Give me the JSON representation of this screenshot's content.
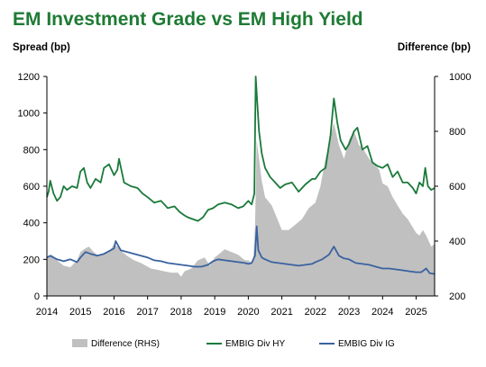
{
  "chart_data": {
    "type": "line",
    "title": "EM Investment Grade vs EM High Yield",
    "ylabel_left": "Spread (bp)",
    "ylabel_right": "Difference (bp)",
    "x_ticks": [
      "2014",
      "2015",
      "2016",
      "2017",
      "2018",
      "2019",
      "2020",
      "2021",
      "2022",
      "2023",
      "2024",
      "2025"
    ],
    "y_left_ticks": [
      "0",
      "200",
      "400",
      "600",
      "800",
      "1000",
      "1200"
    ],
    "y_right_ticks": [
      "200",
      "400",
      "600",
      "800",
      "1000"
    ],
    "xlim": [
      2014.0,
      2025.55
    ],
    "ylim_left": [
      0,
      1200
    ],
    "ylim_right": [
      200,
      1000
    ],
    "legend_position": "bottom",
    "colors": {
      "difference": "#c0c0c0",
      "hy": "#1a7a3a",
      "ig": "#3a62a0"
    },
    "series": [
      {
        "name": "Difference (RHS)",
        "axis": "right",
        "x": [
          2014.0,
          2014.15,
          2014.3,
          2014.5,
          2014.7,
          2014.9,
          2015.0,
          2015.1,
          2015.25,
          2015.4,
          2015.55,
          2015.7,
          2015.85,
          2016.0,
          2016.1,
          2016.25,
          2016.4,
          2016.6,
          2016.8,
          2016.95,
          2017.1,
          2017.3,
          2017.5,
          2017.7,
          2017.9,
          2018.0,
          2018.1,
          2018.3,
          2018.5,
          2018.7,
          2018.85,
          2019.0,
          2019.1,
          2019.3,
          2019.5,
          2019.7,
          2019.9,
          2020.0,
          2020.1,
          2020.15,
          2020.2,
          2020.25,
          2020.3,
          2020.4,
          2020.5,
          2020.7,
          2020.9,
          2021.0,
          2021.2,
          2021.4,
          2021.6,
          2021.8,
          2022.0,
          2022.15,
          2022.3,
          2022.45,
          2022.55,
          2022.7,
          2022.85,
          2023.0,
          2023.15,
          2023.3,
          2023.45,
          2023.6,
          2023.75,
          2023.9,
          2024.0,
          2024.15,
          2024.3,
          2024.45,
          2024.6,
          2024.75,
          2024.9,
          2025.0,
          2025.1,
          2025.2,
          2025.3,
          2025.45,
          2025.55
        ],
        "values": [
          340,
          350,
          330,
          310,
          305,
          330,
          360,
          370,
          380,
          360,
          345,
          355,
          360,
          390,
          380,
          360,
          345,
          330,
          320,
          310,
          300,
          295,
          290,
          285,
          285,
          270,
          290,
          300,
          330,
          340,
          310,
          340,
          350,
          370,
          360,
          350,
          330,
          330,
          320,
          340,
          450,
          770,
          720,
          620,
          560,
          530,
          470,
          440,
          440,
          460,
          480,
          520,
          540,
          600,
          700,
          780,
          830,
          750,
          700,
          770,
          800,
          750,
          730,
          700,
          680,
          660,
          610,
          600,
          560,
          530,
          500,
          480,
          450,
          430,
          420,
          440,
          420,
          380,
          390
        ]
      },
      {
        "name": "EMBIG Div HY",
        "axis": "left",
        "x": [
          2014.0,
          2014.05,
          2014.1,
          2014.2,
          2014.3,
          2014.4,
          2014.5,
          2014.6,
          2014.75,
          2014.9,
          2015.0,
          2015.1,
          2015.2,
          2015.3,
          2015.45,
          2015.6,
          2015.7,
          2015.85,
          2016.0,
          2016.1,
          2016.15,
          2016.3,
          2016.5,
          2016.7,
          2016.85,
          2017.0,
          2017.2,
          2017.4,
          2017.6,
          2017.8,
          2017.95,
          2018.1,
          2018.2,
          2018.35,
          2018.5,
          2018.65,
          2018.8,
          2018.95,
          2019.1,
          2019.3,
          2019.5,
          2019.7,
          2019.85,
          2020.0,
          2020.1,
          2020.18,
          2020.22,
          2020.27,
          2020.32,
          2020.4,
          2020.5,
          2020.65,
          2020.8,
          2020.95,
          2021.1,
          2021.3,
          2021.5,
          2021.7,
          2021.9,
          2022.0,
          2022.15,
          2022.3,
          2022.45,
          2022.55,
          2022.65,
          2022.75,
          2022.9,
          2023.0,
          2023.15,
          2023.25,
          2023.4,
          2023.55,
          2023.7,
          2023.85,
          2024.0,
          2024.15,
          2024.3,
          2024.45,
          2024.6,
          2024.75,
          2024.9,
          2025.0,
          2025.1,
          2025.2,
          2025.27,
          2025.35,
          2025.45,
          2025.55
        ],
        "values": [
          540,
          570,
          630,
          560,
          520,
          540,
          600,
          580,
          600,
          590,
          680,
          700,
          620,
          590,
          640,
          620,
          700,
          720,
          660,
          690,
          750,
          620,
          600,
          590,
          560,
          540,
          510,
          520,
          480,
          490,
          460,
          440,
          430,
          420,
          410,
          430,
          470,
          480,
          500,
          510,
          500,
          480,
          490,
          520,
          500,
          560,
          1200,
          1050,
          900,
          780,
          700,
          650,
          620,
          590,
          610,
          620,
          570,
          610,
          640,
          640,
          680,
          700,
          880,
          1080,
          950,
          850,
          800,
          830,
          900,
          920,
          800,
          820,
          730,
          710,
          700,
          720,
          650,
          680,
          620,
          620,
          590,
          560,
          620,
          600,
          700,
          600,
          580,
          590
        ]
      },
      {
        "name": "EMBIG Div IG",
        "axis": "left",
        "x": [
          2014.0,
          2014.1,
          2014.3,
          2014.5,
          2014.7,
          2014.9,
          2015.0,
          2015.15,
          2015.3,
          2015.5,
          2015.7,
          2015.85,
          2016.0,
          2016.05,
          2016.2,
          2016.4,
          2016.6,
          2016.8,
          2017.0,
          2017.2,
          2017.4,
          2017.6,
          2017.8,
          2018.0,
          2018.2,
          2018.4,
          2018.6,
          2018.8,
          2018.95,
          2019.1,
          2019.3,
          2019.5,
          2019.7,
          2019.9,
          2020.0,
          2020.1,
          2020.2,
          2020.25,
          2020.3,
          2020.4,
          2020.5,
          2020.7,
          2020.9,
          2021.1,
          2021.3,
          2021.5,
          2021.7,
          2021.9,
          2022.0,
          2022.2,
          2022.4,
          2022.55,
          2022.7,
          2022.85,
          2023.0,
          2023.2,
          2023.4,
          2023.6,
          2023.8,
          2024.0,
          2024.2,
          2024.4,
          2024.6,
          2024.8,
          2025.0,
          2025.15,
          2025.3,
          2025.4,
          2025.55
        ],
        "values": [
          210,
          220,
          200,
          190,
          200,
          185,
          210,
          240,
          230,
          220,
          230,
          245,
          260,
          300,
          250,
          240,
          230,
          220,
          210,
          195,
          190,
          180,
          175,
          170,
          165,
          160,
          160,
          170,
          190,
          200,
          195,
          190,
          185,
          180,
          175,
          180,
          220,
          380,
          250,
          210,
          200,
          185,
          180,
          175,
          170,
          165,
          170,
          175,
          185,
          200,
          225,
          270,
          220,
          205,
          200,
          180,
          175,
          170,
          160,
          150,
          150,
          145,
          140,
          135,
          130,
          130,
          150,
          125,
          120
        ]
      }
    ]
  }
}
